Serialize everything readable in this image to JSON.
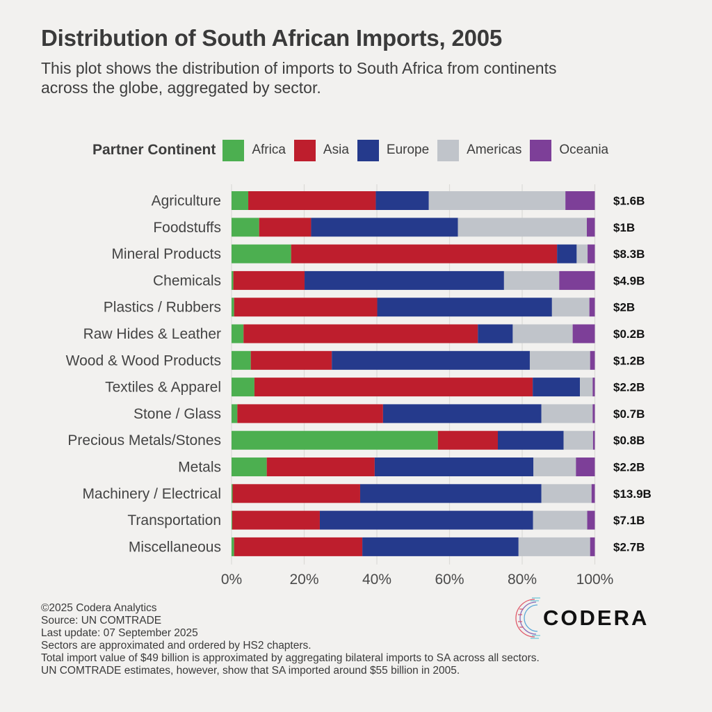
{
  "header": {
    "title": "Distribution of South African Imports, 2005",
    "subtitle": "This plot shows the distribution of imports to South Africa from continents across the globe, aggregated by sector."
  },
  "legend": {
    "title": "Partner Continent",
    "items": [
      {
        "label": "Africa",
        "color": "#4caf50"
      },
      {
        "label": "Asia",
        "color": "#be1e2d"
      },
      {
        "label": "Europe",
        "color": "#253a8c"
      },
      {
        "label": "Americas",
        "color": "#c0c4ca"
      },
      {
        "label": "Oceania",
        "color": "#7d3f98"
      }
    ]
  },
  "chart_data": {
    "type": "bar",
    "orientation": "horizontal",
    "stacked": "percent",
    "title": "Distribution of South African Imports, 2005",
    "xlabel": "",
    "ylabel": "",
    "xlim": [
      0,
      100
    ],
    "x_ticks": [
      "0%",
      "20%",
      "40%",
      "60%",
      "80%",
      "100%"
    ],
    "grid": "vertical",
    "legend_position": "top",
    "categories": [
      "Agriculture",
      "Foodstuffs",
      "Mineral Products",
      "Chemicals",
      "Plastics / Rubbers",
      "Raw Hides & Leather",
      "Wood & Wood Products",
      "Textiles & Apparel",
      "Stone / Glass",
      "Precious Metals/Stones",
      "Metals",
      "Machinery / Electrical",
      "Transportation",
      "Miscellaneous"
    ],
    "series": [
      {
        "name": "Africa",
        "color": "#4caf50",
        "values": [
          4.6,
          7.6,
          16.4,
          0.5,
          0.7,
          3.3,
          5.3,
          6.3,
          1.6,
          56.8,
          9.7,
          0.3,
          0.2,
          0.7
        ]
      },
      {
        "name": "Asia",
        "color": "#be1e2d",
        "values": [
          35.1,
          14.3,
          73.2,
          19.6,
          39.4,
          64.5,
          22.3,
          76.6,
          40.1,
          16.5,
          29.7,
          35.1,
          24.1,
          35.3
        ]
      },
      {
        "name": "Europe",
        "color": "#253a8c",
        "values": [
          14.6,
          40.4,
          5.4,
          54.9,
          48.1,
          9.6,
          54.5,
          13.0,
          43.6,
          18.1,
          43.7,
          49.9,
          58.7,
          43.0
        ]
      },
      {
        "name": "Americas",
        "color": "#c0c4ca",
        "values": [
          37.6,
          35.5,
          3.0,
          15.2,
          10.3,
          16.5,
          16.6,
          3.5,
          14.1,
          8.1,
          11.7,
          13.8,
          14.9,
          19.7
        ]
      },
      {
        "name": "Oceania",
        "color": "#7d3f98",
        "values": [
          8.1,
          2.2,
          2.0,
          9.8,
          1.5,
          6.1,
          1.3,
          0.6,
          0.6,
          0.5,
          5.2,
          0.9,
          2.1,
          1.3
        ]
      }
    ],
    "totals": [
      "$1.6B",
      "$1B",
      "$8.3B",
      "$4.9B",
      "$2B",
      "$0.2B",
      "$1.2B",
      "$2.2B",
      "$0.7B",
      "$0.8B",
      "$2.2B",
      "$13.9B",
      "$7.1B",
      "$2.7B"
    ]
  },
  "footer": {
    "lines": [
      "©2025 Codera Analytics",
      "Source: UN COMTRADE",
      "Last update: 07 September 2025",
      "Sectors are approximated and ordered by HS2 chapters.",
      "Total import value of $49 billion is approximated by aggregating bilateral imports to SA across all sectors.",
      "UN COMTRADE estimates, however, show that SA imported around $55 billion in 2005."
    ]
  },
  "logo": {
    "text": "CODERA"
  }
}
